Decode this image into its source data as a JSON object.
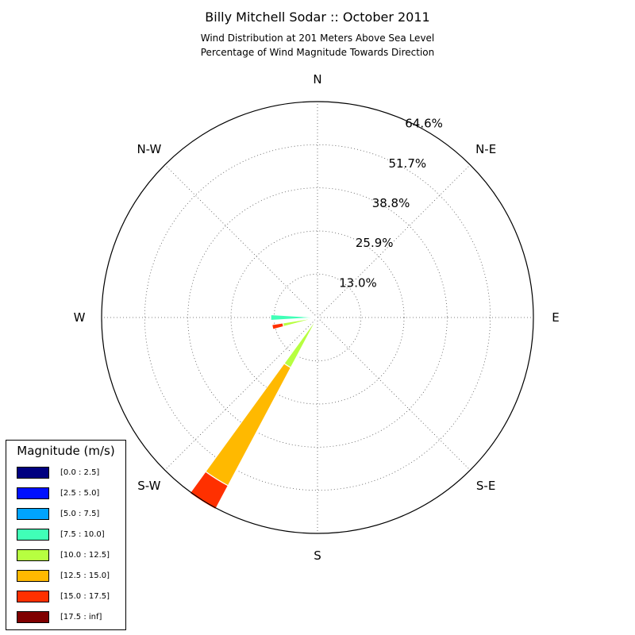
{
  "title": "Billy Mitchell Sodar :: October 2011",
  "subtitle_line1": "Wind Distribution at 201 Meters Above Sea Level",
  "subtitle_line2": "Percentage of Wind Magnitude Towards Direction",
  "chart_data": {
    "type": "windrose",
    "directions": [
      "N",
      "N-E",
      "E",
      "S-E",
      "S",
      "S-W",
      "W",
      "N-W"
    ],
    "radial_ticks": [
      13.0,
      25.9,
      38.8,
      51.7,
      64.6
    ],
    "radial_tick_labels": [
      "13.0%",
      "25.9%",
      "38.8%",
      "51.7%",
      "64.6%"
    ],
    "rmax": 64.6,
    "grid": true,
    "sectors": [
      {
        "direction_deg": 270,
        "width_deg": 7,
        "bins": [
          {
            "bin": "[5.0 : 7.5]",
            "value": 0.7
          },
          {
            "bin": "[7.5 : 10.0]",
            "value": 14.0
          }
        ]
      },
      {
        "direction_deg": 258,
        "width_deg": 6,
        "bins": [
          {
            "bin": "[5.0 : 7.5]",
            "value": 1.5
          },
          {
            "bin": "[10.0 : 12.5]",
            "value": 10.5
          },
          {
            "bin": "[15.0 : 17.5]",
            "value": 13.8
          }
        ]
      },
      {
        "direction_deg": 212,
        "width_deg": 8,
        "bins": [
          {
            "bin": "[10.0 : 12.5]",
            "value": 17.0
          },
          {
            "bin": "[12.5 : 15.0]",
            "value": 57.0
          },
          {
            "bin": "[15.0 : 17.5]",
            "value": 65.0
          }
        ]
      },
      {
        "direction_deg": 205,
        "width_deg": 6,
        "bins": [
          {
            "bin": "[15.0 : 17.5]",
            "value": 1.9
          }
        ]
      }
    ]
  },
  "legend": {
    "title": "Magnitude (m/s)",
    "items": [
      {
        "label": "[0.0 : 2.5]",
        "color": "#000080"
      },
      {
        "label": "[2.5 : 5.0]",
        "color": "#0010ff"
      },
      {
        "label": "[5.0 : 7.5]",
        "color": "#00a4ff"
      },
      {
        "label": "[7.5 : 10.0]",
        "color": "#40ffb7"
      },
      {
        "label": "[10.0 : 12.5]",
        "color": "#b7ff40"
      },
      {
        "label": "[12.5 : 15.0]",
        "color": "#ffb900"
      },
      {
        "label": "[15.0 : 17.5]",
        "color": "#ff3000"
      },
      {
        "label": "[17.5 : inf]",
        "color": "#800000"
      }
    ]
  }
}
